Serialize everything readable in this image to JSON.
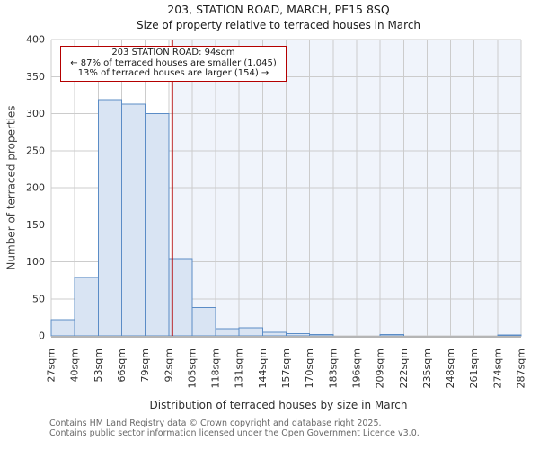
{
  "chart_data": {
    "type": "bar",
    "title": "203, STATION ROAD, MARCH, PE15 8SQ",
    "subtitle": "Size of property relative to terraced houses in March",
    "xlabel": "Distribution of terraced houses by size in March",
    "ylabel": "Number of terraced properties",
    "xlim": [
      27,
      287
    ],
    "ylim": [
      0,
      400
    ],
    "bin_width": 13,
    "x_ticks": [
      27,
      40,
      53,
      66,
      79,
      92,
      105,
      118,
      131,
      144,
      157,
      170,
      183,
      196,
      209,
      222,
      235,
      248,
      261,
      274,
      287
    ],
    "x_tick_labels": [
      "27sqm",
      "40sqm",
      "53sqm",
      "66sqm",
      "79sqm",
      "92sqm",
      "105sqm",
      "118sqm",
      "131sqm",
      "144sqm",
      "157sqm",
      "170sqm",
      "183sqm",
      "196sqm",
      "209sqm",
      "222sqm",
      "235sqm",
      "248sqm",
      "261sqm",
      "274sqm",
      "287sqm"
    ],
    "y_ticks": [
      0,
      50,
      100,
      150,
      200,
      250,
      300,
      350,
      400
    ],
    "bin_starts": [
      27,
      40,
      53,
      66,
      79,
      92,
      105,
      118,
      131,
      144,
      157,
      170,
      183,
      196,
      209,
      222,
      235,
      248,
      261,
      274
    ],
    "values": [
      22,
      79,
      319,
      313,
      300,
      104,
      38,
      10,
      11,
      5,
      3,
      2,
      0,
      0,
      2,
      0,
      0,
      0,
      0,
      1
    ],
    "marker_value": 94,
    "grid": true,
    "colors": {
      "bar_fill": "#d9e4f3",
      "bar_edge": "#5b8cc6",
      "marker": "#b40000",
      "shade": "#f0f4fb",
      "grid": "#cccccc",
      "axis": "#b5b5b5"
    }
  },
  "annotation": {
    "line1": "203 STATION ROAD: 94sqm",
    "line2": "← 87% of terraced houses are smaller (1,045)",
    "line3": "13% of terraced houses are larger (154) →"
  },
  "footer": {
    "line1": "Contains HM Land Registry data © Crown copyright and database right 2025.",
    "line2": "Contains public sector information licensed under the Open Government Licence v3.0."
  }
}
